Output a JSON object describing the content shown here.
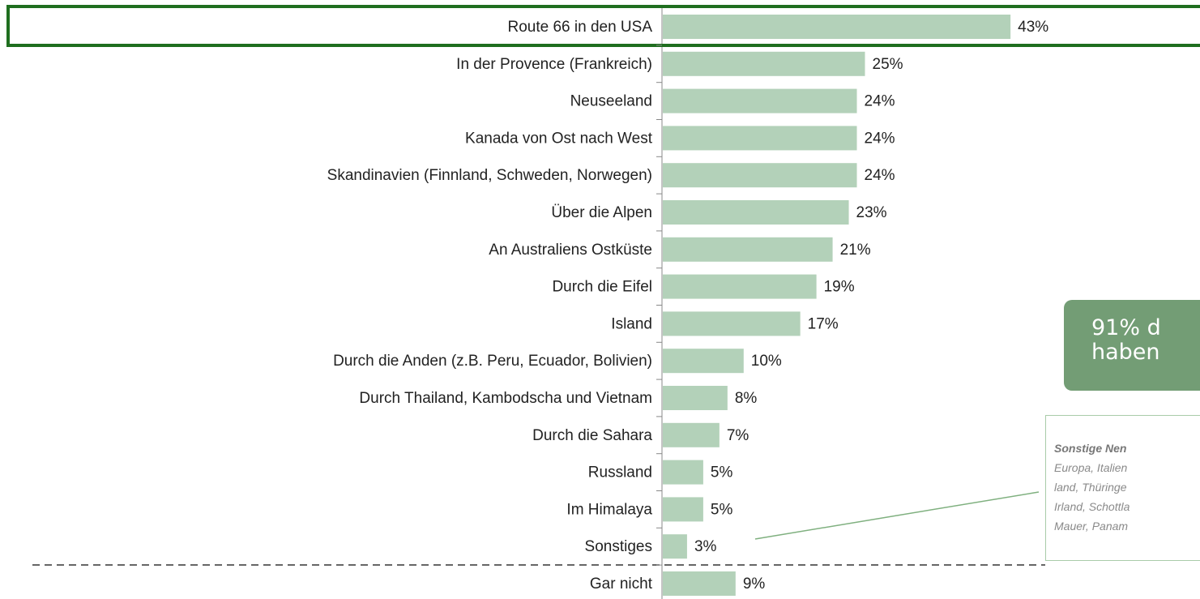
{
  "chart_data": {
    "type": "bar",
    "orientation": "horizontal",
    "color": "#b3d1b9",
    "categories": [
      "Route 66 in den USA",
      "In der Provence (Frankreich)",
      "Neuseeland",
      "Kanada von Ost nach West",
      "Skandinavien (Finnland, Schweden, Norwegen)",
      "Über die Alpen",
      "An Australiens Ostküste",
      "Durch die Eifel",
      "Island",
      "Durch die Anden (z.B. Peru, Ecuador, Bolivien)",
      "Durch Thailand, Kambodscha und Vietnam",
      "Durch die Sahara",
      "Russland",
      "Im Himalaya",
      "Sonstiges",
      "Gar nicht"
    ],
    "values": [
      43,
      25,
      24,
      24,
      24,
      23,
      21,
      19,
      17,
      10,
      8,
      7,
      5,
      5,
      3,
      9
    ],
    "value_labels": [
      "43%",
      "25%",
      "24%",
      "24%",
      "24%",
      "23%",
      "21%",
      "19%",
      "17%",
      "10%",
      "8%",
      "7%",
      "5%",
      "5%",
      "3%",
      "9%"
    ],
    "callout": [
      "91% d",
      "haben"
    ],
    "note_title": "Sonstige Nen",
    "note_lines": [
      "Europa, Italien",
      "land, Thüringe",
      "Irland, Schottla",
      "Mauer, Panam"
    ]
  }
}
